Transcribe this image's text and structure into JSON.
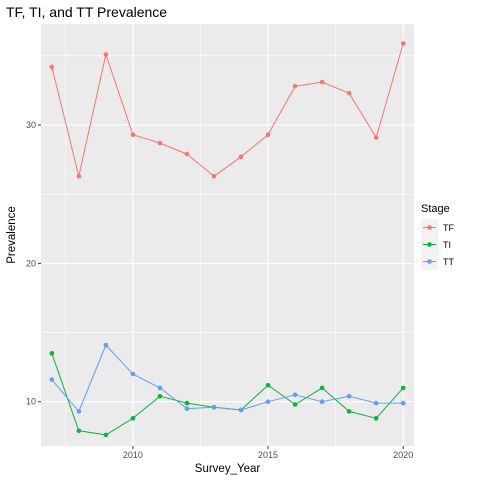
{
  "chart_data": {
    "type": "line",
    "title": "TF, TI, and TT Prevalence",
    "xlabel": "Survey_Year",
    "ylabel": "Prevalence",
    "xlim": [
      2006.6,
      2020.4
    ],
    "ylim": [
      6.8,
      37.3
    ],
    "x_ticks": [
      2010,
      2015,
      2020
    ],
    "y_ticks": [
      10,
      20,
      30
    ],
    "grid": true,
    "legend": {
      "title": "Stage",
      "position": "right"
    },
    "x": [
      2007,
      2008,
      2009,
      2010,
      2011,
      2012,
      2013,
      2014,
      2015,
      2016,
      2017,
      2018,
      2019,
      2020
    ],
    "series": [
      {
        "name": "TF",
        "color": "#F8766D",
        "values": [
          34.2,
          26.3,
          35.1,
          29.3,
          28.7,
          27.9,
          26.3,
          27.7,
          29.3,
          32.8,
          33.1,
          32.3,
          29.1,
          35.9
        ]
      },
      {
        "name": "TI",
        "color": "#00BA38",
        "values": [
          13.5,
          7.9,
          7.6,
          8.8,
          10.4,
          9.9,
          9.6,
          9.4,
          11.2,
          9.8,
          11.0,
          9.3,
          8.8,
          11.0
        ]
      },
      {
        "name": "TT",
        "color": "#619CFF",
        "values": [
          11.6,
          9.3,
          14.1,
          12.0,
          11.0,
          9.5,
          9.6,
          9.4,
          10.0,
          10.5,
          10.0,
          10.4,
          9.9,
          9.9
        ]
      }
    ]
  }
}
